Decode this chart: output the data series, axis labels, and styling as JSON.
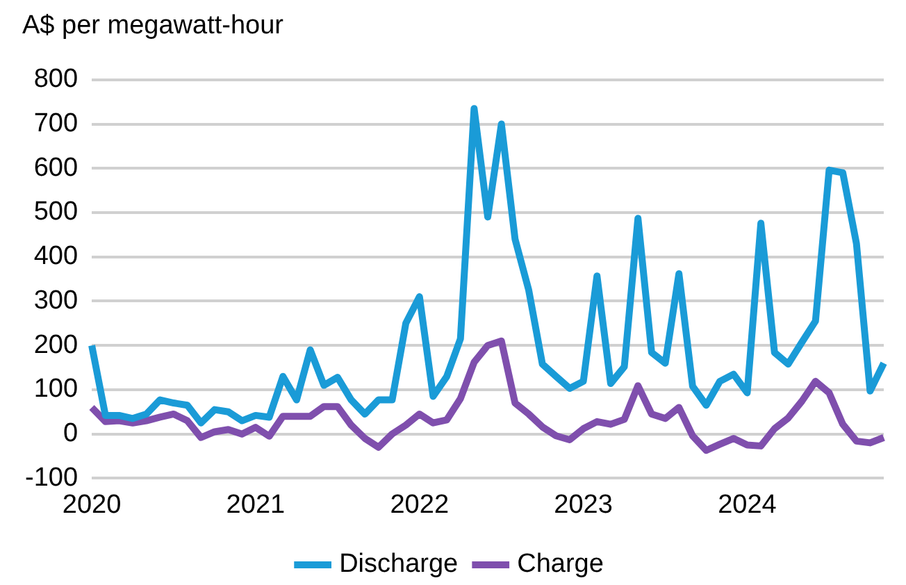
{
  "chart_data": {
    "type": "line",
    "ylabel": "A$ per megawatt-hour",
    "categories": [
      "2020",
      null,
      null,
      null,
      null,
      null,
      null,
      null,
      null,
      null,
      null,
      null,
      "2021",
      null,
      null,
      null,
      null,
      null,
      null,
      null,
      null,
      null,
      null,
      null,
      "2022",
      null,
      null,
      null,
      null,
      null,
      null,
      null,
      null,
      null,
      null,
      null,
      "2023",
      null,
      null,
      null,
      null,
      null,
      null,
      null,
      null,
      null,
      null,
      null,
      "2024",
      null,
      null,
      null,
      null,
      null,
      null,
      null,
      null,
      null,
      null
    ],
    "series": [
      {
        "name": "Discharge",
        "color": "#1a9bd7",
        "values": [
          200,
          42,
          42,
          35,
          45,
          77,
          70,
          65,
          25,
          55,
          50,
          30,
          42,
          38,
          130,
          77,
          190,
          110,
          128,
          77,
          45,
          77,
          77,
          250,
          310,
          85,
          130,
          215,
          735,
          490,
          700,
          440,
          325,
          158,
          130,
          103,
          119,
          357,
          114,
          152,
          487,
          184,
          160,
          362,
          108,
          65,
          119,
          135,
          93,
          476,
          184,
          158,
          207,
          255,
          596,
          590,
          430,
          97,
          160
        ]
      },
      {
        "name": "Charge",
        "color": "#7f4fad",
        "values": [
          60,
          28,
          30,
          25,
          30,
          38,
          45,
          30,
          -8,
          5,
          10,
          0,
          15,
          -5,
          40,
          40,
          40,
          62,
          62,
          20,
          -10,
          -30,
          0,
          20,
          45,
          25,
          32,
          80,
          162,
          200,
          210,
          70,
          45,
          16,
          -4,
          -13,
          12,
          28,
          22,
          33,
          109,
          45,
          35,
          60,
          -4,
          -37,
          -23,
          -10,
          -25,
          -27,
          12,
          36,
          74,
          119,
          93,
          22,
          -16,
          -20,
          -8
        ]
      }
    ],
    "ylim": [
      -100,
      800
    ],
    "yticks": [
      -100,
      0,
      100,
      200,
      300,
      400,
      500,
      600,
      700,
      800
    ],
    "grid": "y",
    "legend": "bottom",
    "marker": "none",
    "line_style": "solid"
  }
}
